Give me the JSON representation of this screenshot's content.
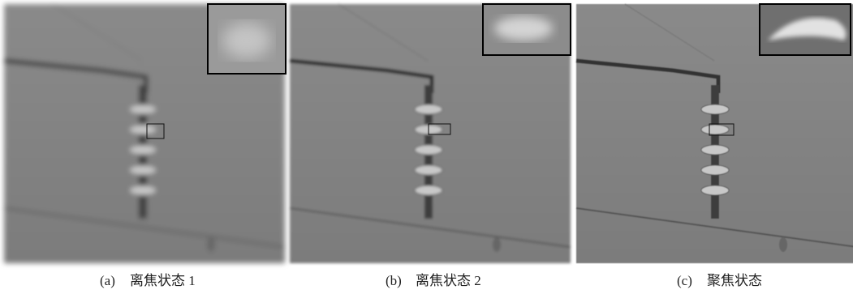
{
  "panels": [
    {
      "label": "(a)",
      "caption": "离焦状态 1"
    },
    {
      "label": "(b)",
      "caption": "离焦状态 2"
    },
    {
      "label": "(c)",
      "caption": "聚焦状态"
    }
  ]
}
